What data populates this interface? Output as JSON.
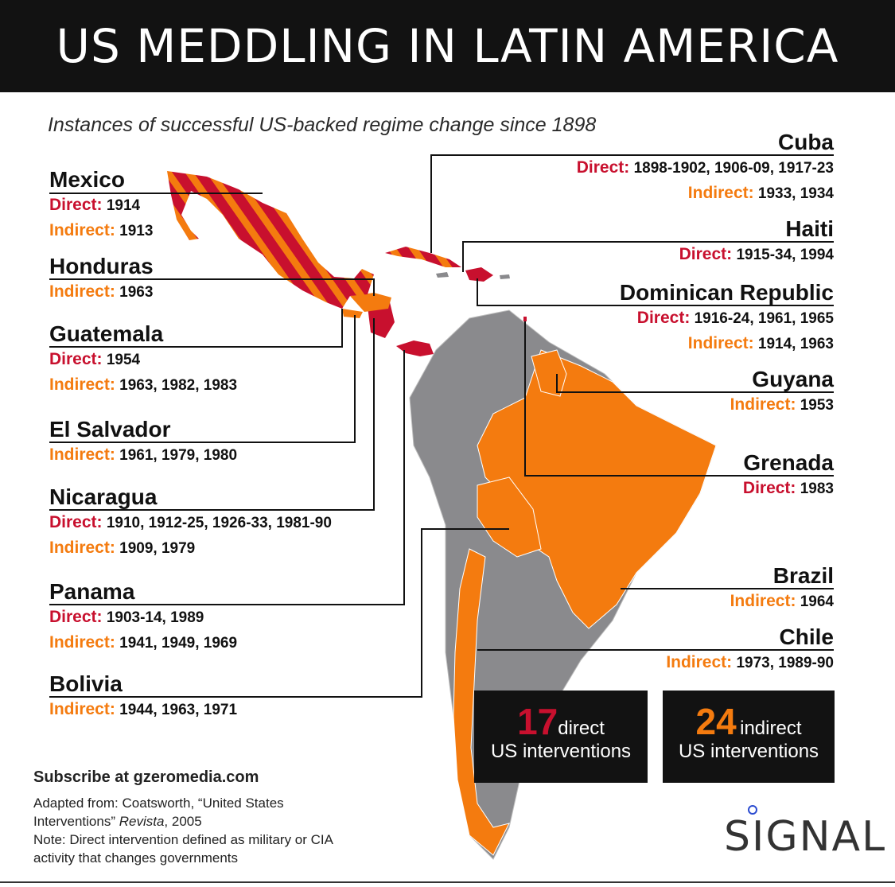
{
  "title": "US MEDDLING IN LATIN AMERICA",
  "subtitle": "Instances of successful US-backed regime change since 1898",
  "labels": {
    "direct": "Direct:",
    "indirect": "Indirect:"
  },
  "colors": {
    "direct": "#c8102e",
    "indirect": "#f47b0f",
    "neutral": "#8a8a8d",
    "background_bar": "#121212"
  },
  "countries": {
    "mexico": {
      "name": "Mexico",
      "direct": "1914",
      "indirect": "1913"
    },
    "honduras": {
      "name": "Honduras",
      "indirect": "1963"
    },
    "guatemala": {
      "name": "Guatemala",
      "direct": "1954",
      "indirect": "1963, 1982, 1983"
    },
    "el_salvador": {
      "name": "El Salvador",
      "indirect": "1961, 1979, 1980"
    },
    "nicaragua": {
      "name": "Nicaragua",
      "direct": "1910, 1912-25, 1926-33, 1981-90",
      "indirect": "1909, 1979"
    },
    "panama": {
      "name": "Panama",
      "direct": "1903-14, 1989",
      "indirect": "1941, 1949, 1969"
    },
    "bolivia": {
      "name": "Bolivia",
      "indirect": "1944, 1963, 1971"
    },
    "cuba": {
      "name": "Cuba",
      "direct": "1898-1902, 1906-09, 1917-23",
      "indirect": "1933, 1934"
    },
    "haiti": {
      "name": "Haiti",
      "direct": "1915-34, 1994"
    },
    "dominican_republic": {
      "name": "Dominican Republic",
      "direct": "1916-24, 1961, 1965",
      "indirect": "1914, 1963"
    },
    "guyana": {
      "name": "Guyana",
      "indirect": "1953"
    },
    "grenada": {
      "name": "Grenada",
      "direct": "1983"
    },
    "brazil": {
      "name": "Brazil",
      "indirect": "1964"
    },
    "chile": {
      "name": "Chile",
      "indirect": "1973, 1989-90"
    }
  },
  "totals": {
    "direct": {
      "count": "17",
      "unit": "direct",
      "line2": "US interventions"
    },
    "indirect": {
      "count": "24",
      "unit": "indirect",
      "line2": "US interventions"
    }
  },
  "footer": {
    "subscribe": "Subscribe at gzeromedia.com",
    "source_line1": "Adapted from: Coatsworth, “United States",
    "source_line2_a": "Interventions” ",
    "source_line2_b": "Revista",
    "source_line2_c": ", 2005",
    "note_line1": "Note: Direct intervention defined as military or CIA",
    "note_line2": "activity that changes governments"
  },
  "logo": "SIGNAL"
}
